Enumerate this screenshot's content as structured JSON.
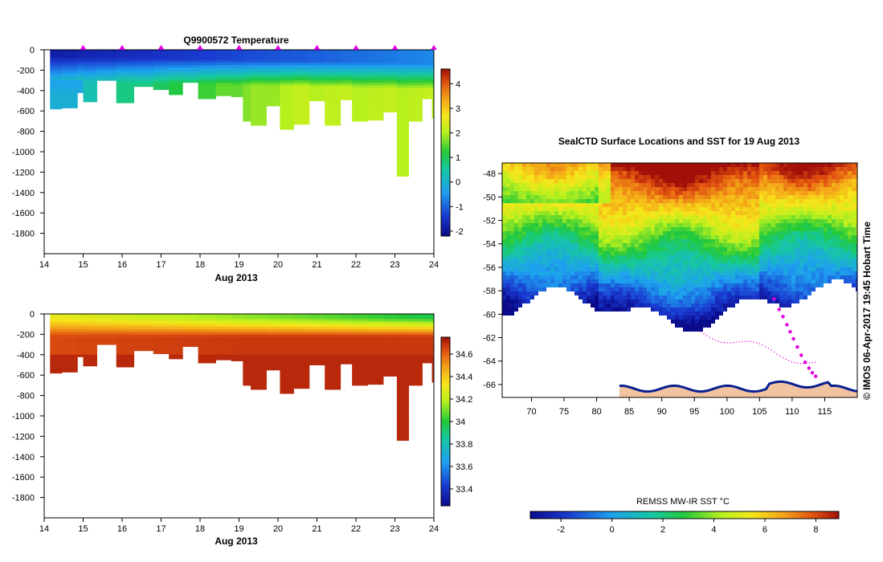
{
  "chart_data": [
    {
      "type": "heatmap",
      "id": "temperature",
      "title": "Q9900572  Temperature",
      "xlabel": "Aug 2013",
      "ylabel": "",
      "x_ticks": [
        "14",
        "15",
        "16",
        "17",
        "18",
        "19",
        "20",
        "21",
        "22",
        "23",
        "24"
      ],
      "y_ticks": [
        "0",
        "-200",
        "-400",
        "-600",
        "-800",
        "-1000",
        "-1200",
        "-1400",
        "-1600",
        "-1800"
      ],
      "xlim": [
        14,
        24
      ],
      "ylim": [
        -2000,
        0
      ],
      "profile_markers": [
        15,
        16,
        17,
        18,
        19,
        20,
        21,
        22,
        23,
        24
      ],
      "colorbar": {
        "min": -2.2,
        "max": 4.6,
        "ticks": [
          "4",
          "3",
          "2",
          "1",
          "0",
          "-1",
          "-2"
        ]
      },
      "profiles": [
        {
          "t": 14.15,
          "depth": 580
        },
        {
          "t": 14.45,
          "depth": 570
        },
        {
          "t": 14.85,
          "depth": 420
        },
        {
          "t": 15.0,
          "depth": 510
        },
        {
          "t": 15.35,
          "depth": 300
        },
        {
          "t": 15.85,
          "depth": 520
        },
        {
          "t": 16.3,
          "depth": 360
        },
        {
          "t": 16.8,
          "depth": 390
        },
        {
          "t": 17.2,
          "depth": 440
        },
        {
          "t": 17.55,
          "depth": 320
        },
        {
          "t": 17.95,
          "depth": 480
        },
        {
          "t": 18.4,
          "depth": 450
        },
        {
          "t": 18.8,
          "depth": 460
        },
        {
          "t": 19.1,
          "depth": 700
        },
        {
          "t": 19.3,
          "depth": 740
        },
        {
          "t": 19.7,
          "depth": 550
        },
        {
          "t": 20.05,
          "depth": 780
        },
        {
          "t": 20.4,
          "depth": 730
        },
        {
          "t": 20.8,
          "depth": 500
        },
        {
          "t": 21.2,
          "depth": 740
        },
        {
          "t": 21.6,
          "depth": 490
        },
        {
          "t": 21.9,
          "depth": 700
        },
        {
          "t": 22.3,
          "depth": 690
        },
        {
          "t": 22.7,
          "depth": 610
        },
        {
          "t": 23.05,
          "depth": 1240
        },
        {
          "t": 23.35,
          "depth": 700
        },
        {
          "t": 23.7,
          "depth": 480
        },
        {
          "t": 23.95,
          "depth": 670
        }
      ]
    },
    {
      "type": "heatmap",
      "id": "salinity",
      "title": "",
      "xlabel": "Aug 2013",
      "ylabel": "",
      "x_ticks": [
        "14",
        "15",
        "16",
        "17",
        "18",
        "19",
        "20",
        "21",
        "22",
        "23",
        "24"
      ],
      "y_ticks": [
        "0",
        "-200",
        "-400",
        "-600",
        "-800",
        "-1000",
        "-1200",
        "-1400",
        "-1600",
        "-1800"
      ],
      "xlim": [
        14,
        24
      ],
      "ylim": [
        -2000,
        0
      ],
      "colorbar": {
        "min": 33.25,
        "max": 34.75,
        "ticks": [
          "34.6",
          "34.4",
          "34.2",
          "34",
          "33.8",
          "33.6",
          "33.4"
        ]
      },
      "profiles_same_as": "temperature"
    },
    {
      "type": "heatmap",
      "id": "sst-map",
      "title": "SealCTD Surface Locations and SST for 19 Aug 2013",
      "x_ticks": [
        "70",
        "75",
        "80",
        "85",
        "90",
        "95",
        "100",
        "105",
        "110",
        "115"
      ],
      "y_ticks": [
        "-48",
        "-50",
        "-52",
        "-54",
        "-56",
        "-58",
        "-60",
        "-62",
        "-64",
        "-66"
      ],
      "xlim": [
        65.5,
        120
      ],
      "ylim": [
        -67.1,
        -47.1
      ],
      "colorbar": {
        "label": "REMSS MW-IR SST °C",
        "min": -3.2,
        "max": 8.9,
        "ticks": [
          "-2",
          "0",
          "2",
          "4",
          "6",
          "8"
        ]
      },
      "track_points": [
        [
          107.2,
          -58.7
        ],
        [
          108.0,
          -59.6
        ],
        [
          108.6,
          -60.2
        ],
        [
          109.2,
          -60.9
        ],
        [
          109.7,
          -61.5
        ],
        [
          110.2,
          -62.1
        ],
        [
          110.8,
          -62.8
        ],
        [
          111.4,
          -63.5
        ],
        [
          112.0,
          -64.1
        ],
        [
          112.6,
          -64.6
        ],
        [
          113.1,
          -65.0
        ],
        [
          113.6,
          -65.3
        ]
      ],
      "stamp": "© IMOS 06-Apr-2017 19:45 Hobart Time"
    }
  ],
  "colors": {
    "marker": "#e000e0",
    "land": "#f2c3a0",
    "ice_edge": "#0a1f8f"
  }
}
